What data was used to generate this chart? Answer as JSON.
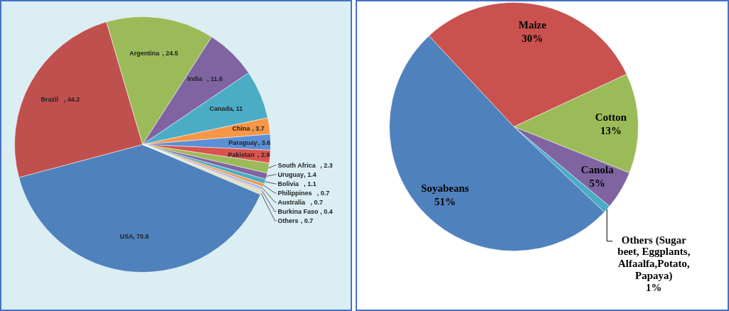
{
  "chart_data": [
    {
      "type": "pie",
      "categories": [
        "USA",
        "Brazil",
        "Argentina",
        "India",
        "Canada",
        "China",
        "Paraguay",
        "Pakistan",
        "South Africa",
        "Uruguay",
        "Bolivia",
        "Philippines",
        "Australia",
        "Burkina Faso",
        "Others"
      ],
      "values": [
        70.9,
        44.2,
        24.5,
        11.6,
        11,
        3.7,
        3.6,
        2.9,
        2.3,
        1.4,
        1.1,
        0.7,
        0.7,
        0.4,
        0.7
      ],
      "value_labels": [
        ", 70.9",
        ", 44.2",
        ", 24.5",
        ", 11.6",
        ", 11",
        ", 3.7",
        ", 3.6",
        ", 2.9",
        ", 2.3",
        ", 1.4",
        ", 1.1",
        ", 0.7",
        ", 0.7",
        ", 0.4",
        ", 0.7"
      ],
      "colors": [
        "#4f81bd",
        "#c0504d",
        "#9bbb59",
        "#8064a2",
        "#4bacc6",
        "#f79646",
        "#5b8fd6",
        "#d9534f",
        "#9bbb59",
        "#8064a2",
        "#4bacc6",
        "#f79646",
        "#a9bde0",
        "#e6b9b8",
        "#d7e4bd"
      ]
    },
    {
      "type": "pie",
      "categories": [
        "Maize",
        "Cotton",
        "Canola",
        "Others (Sugar beet, Eggplants, Alfaalfa,Potato, Papaya)",
        "Soyabeans"
      ],
      "values": [
        30,
        13,
        5,
        1,
        51
      ],
      "value_labels": [
        "30%",
        "13%",
        "5%",
        "1%",
        "51%"
      ],
      "colors": [
        "#c9524f",
        "#9bbb59",
        "#8064a2",
        "#4bacc6",
        "#4f81bd"
      ]
    }
  ]
}
